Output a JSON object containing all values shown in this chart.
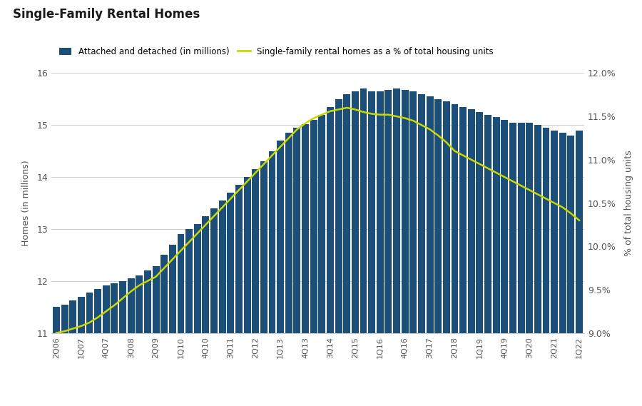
{
  "title": "Single-Family Rental Homes",
  "ylabel_left": "Homes (in millions)",
  "ylabel_right": "% of total housing units",
  "legend_bar": "Attached and detached (in millions)",
  "legend_line": "Single-family rental homes as a % of total housing units",
  "bar_color": "#1B4F7A",
  "line_color": "#C8D800",
  "background_color": "#FFFFFF",
  "tick_labels": [
    "2Q06",
    "1Q07",
    "4Q07",
    "3Q08",
    "2Q09",
    "1Q10",
    "4Q10",
    "3Q11",
    "2Q12",
    "1Q13",
    "4Q13",
    "3Q14",
    "2Q15",
    "1Q16",
    "4Q16",
    "3Q17",
    "2Q18",
    "1Q19",
    "4Q19",
    "3Q20",
    "2Q21",
    "1Q22"
  ],
  "tick_positions": [
    0,
    3,
    6,
    9,
    12,
    15,
    18,
    21,
    24,
    27,
    30,
    33,
    36,
    39,
    42,
    45,
    48,
    51,
    54,
    57,
    60,
    63
  ],
  "bar_values": [
    11.5,
    11.55,
    11.62,
    11.7,
    11.78,
    11.85,
    11.92,
    11.95,
    12.0,
    12.05,
    12.1,
    12.2,
    12.28,
    12.5,
    12.7,
    12.9,
    13.0,
    13.1,
    13.25,
    13.4,
    13.55,
    13.7,
    13.85,
    14.0,
    14.15,
    14.3,
    14.5,
    14.7,
    14.85,
    14.95,
    15.02,
    15.1,
    15.2,
    15.35,
    15.5,
    15.6,
    15.65,
    15.7,
    15.65,
    15.65,
    15.68,
    15.7,
    15.68,
    15.65,
    15.6,
    15.55,
    15.5,
    15.45,
    15.4,
    15.35,
    15.3,
    15.25,
    15.2,
    15.15,
    15.1,
    15.05,
    15.05,
    15.05,
    15.0,
    14.95,
    14.9,
    14.85,
    14.8,
    14.9
  ],
  "pct_values": [
    9.0,
    9.02,
    9.05,
    9.08,
    9.12,
    9.18,
    9.25,
    9.32,
    9.4,
    9.48,
    9.55,
    9.6,
    9.65,
    9.75,
    9.85,
    9.95,
    10.05,
    10.15,
    10.25,
    10.35,
    10.45,
    10.55,
    10.65,
    10.75,
    10.85,
    10.95,
    11.05,
    11.15,
    11.25,
    11.35,
    11.42,
    11.48,
    11.52,
    11.56,
    11.58,
    11.6,
    11.58,
    11.55,
    11.53,
    11.52,
    11.52,
    11.5,
    11.48,
    11.45,
    11.4,
    11.35,
    11.28,
    11.2,
    11.1,
    11.05,
    11.0,
    10.95,
    10.9,
    10.85,
    10.8,
    10.75,
    10.7,
    10.65,
    10.6,
    10.55,
    10.5,
    10.45,
    10.38,
    10.3
  ],
  "ylim_left": [
    11,
    16
  ],
  "ylim_right": [
    9.0,
    12.0
  ],
  "yticks_left": [
    11,
    12,
    13,
    14,
    15,
    16
  ],
  "yticks_right": [
    9.0,
    9.5,
    10.0,
    10.5,
    11.0,
    11.5,
    12.0
  ]
}
